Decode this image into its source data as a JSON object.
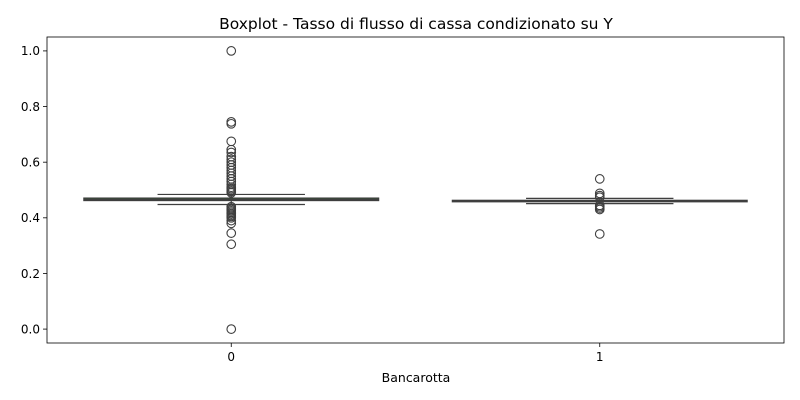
{
  "chart_data": {
    "type": "boxplot",
    "title": "Boxplot - Tasso di flusso di cassa condizionato su Y",
    "xlabel": "Bancarotta",
    "ylabel": "",
    "categories": [
      "0",
      "1"
    ],
    "ylim": [
      -0.05,
      1.05
    ],
    "yticks": [
      0.0,
      0.2,
      0.4,
      0.6,
      0.8,
      1.0
    ],
    "ytick_labels": [
      "0.0",
      "0.2",
      "0.4",
      "0.6",
      "0.8",
      "1.0"
    ],
    "grid": false,
    "boxes": [
      {
        "category": "0",
        "q1": 0.462,
        "median": 0.466,
        "q3": 0.471,
        "whisker_low": 0.448,
        "whisker_high": 0.484,
        "box_color": "#2a6b2a",
        "outliers": [
          1.0,
          0.745,
          0.738,
          0.675,
          0.645,
          0.635,
          0.62,
          0.61,
          0.6,
          0.59,
          0.58,
          0.57,
          0.56,
          0.55,
          0.54,
          0.53,
          0.52,
          0.51,
          0.505,
          0.5,
          0.495,
          0.49,
          0.44,
          0.435,
          0.43,
          0.425,
          0.42,
          0.415,
          0.41,
          0.405,
          0.4,
          0.39,
          0.38,
          0.345,
          0.305,
          0.0
        ]
      },
      {
        "category": "1",
        "q1": 0.458,
        "median": 0.461,
        "q3": 0.463,
        "whisker_low": 0.451,
        "whisker_high": 0.47,
        "box_color": "#2a6b2a",
        "outliers": [
          0.54,
          0.488,
          0.48,
          0.474,
          0.445,
          0.44,
          0.435,
          0.43,
          0.342
        ]
      }
    ]
  }
}
